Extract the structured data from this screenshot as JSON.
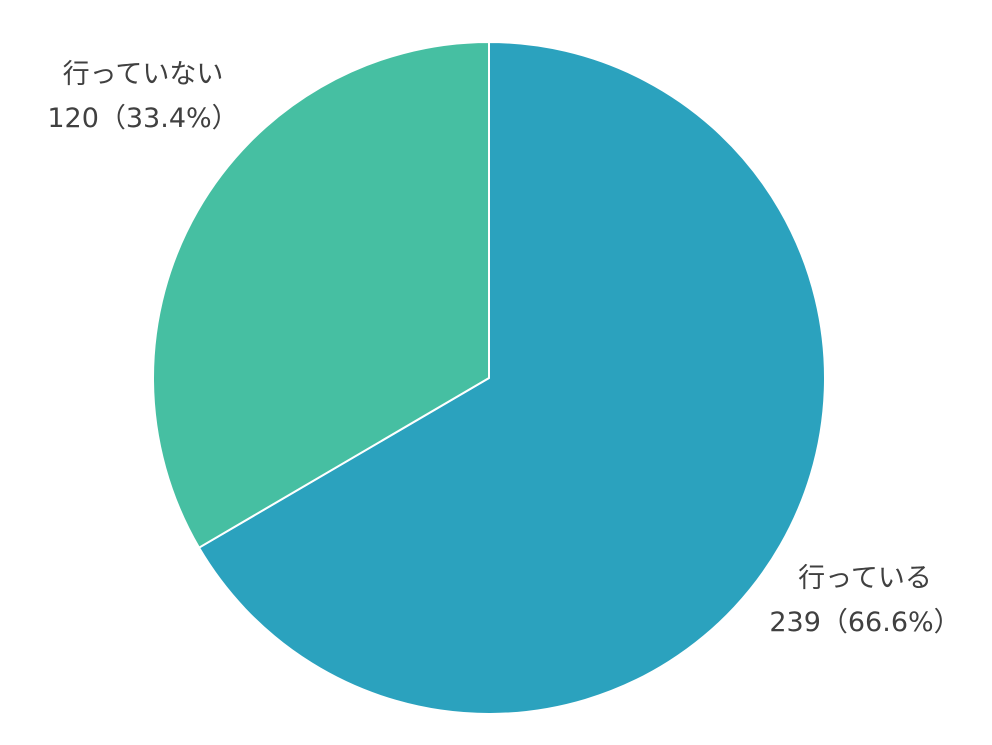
{
  "chart_data": {
    "type": "pie",
    "start_angle_deg": 0,
    "direction": "clockwise",
    "colors": [
      "#2BA2BE",
      "#46BFA2"
    ],
    "slices": [
      {
        "label": "行っている",
        "value": 239,
        "value_text": "239（66.6%）",
        "percent": 66.6
      },
      {
        "label": "行っていない",
        "value": 120,
        "value_text": "120（33.4%）",
        "percent": 33.4
      }
    ]
  }
}
